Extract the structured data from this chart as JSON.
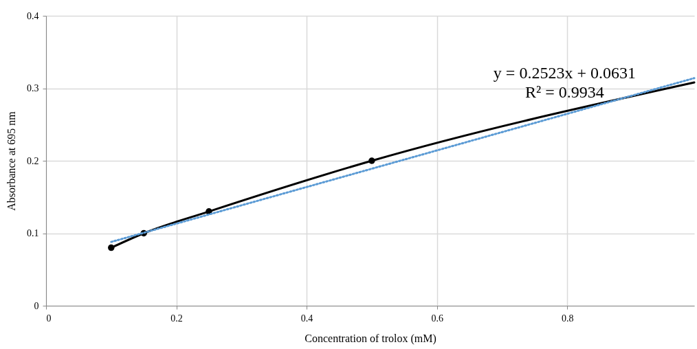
{
  "chart_data": {
    "type": "line",
    "xlabel": "Concentration of trolox (mM)",
    "ylabel": "Absorbance at 695 nm",
    "xlim": [
      0,
      0.995
    ],
    "xticks": [
      0,
      0.2,
      0.4,
      0.6,
      0.8
    ],
    "ylim": [
      0,
      0.4
    ],
    "yticks": [
      0,
      0.1,
      0.2,
      0.3,
      0.4
    ],
    "grid": true,
    "series": [
      {
        "color": "#000000",
        "marker": "none",
        "line_style": "solid",
        "x": [
          0.1,
          0.15,
          0.25,
          0.5,
          0.995
        ],
        "values": [
          0.08,
          0.1,
          0.13,
          0.2,
          0.308
        ]
      },
      {
        "type": "scatter",
        "color": "#000000",
        "marker": "circle",
        "x": [
          0.1,
          0.15,
          0.25,
          0.5
        ],
        "values": [
          0.08,
          0.1,
          0.13,
          0.2
        ]
      },
      {
        "type": "line",
        "color": "#5b9bd5",
        "marker": "none",
        "line_style": "dotted",
        "x": [
          0.1,
          0.995
        ],
        "values": [
          0.088,
          0.314
        ]
      }
    ],
    "annotations": [
      "y = 0.2523x + 0.0631",
      "R² = 0.9934"
    ]
  }
}
